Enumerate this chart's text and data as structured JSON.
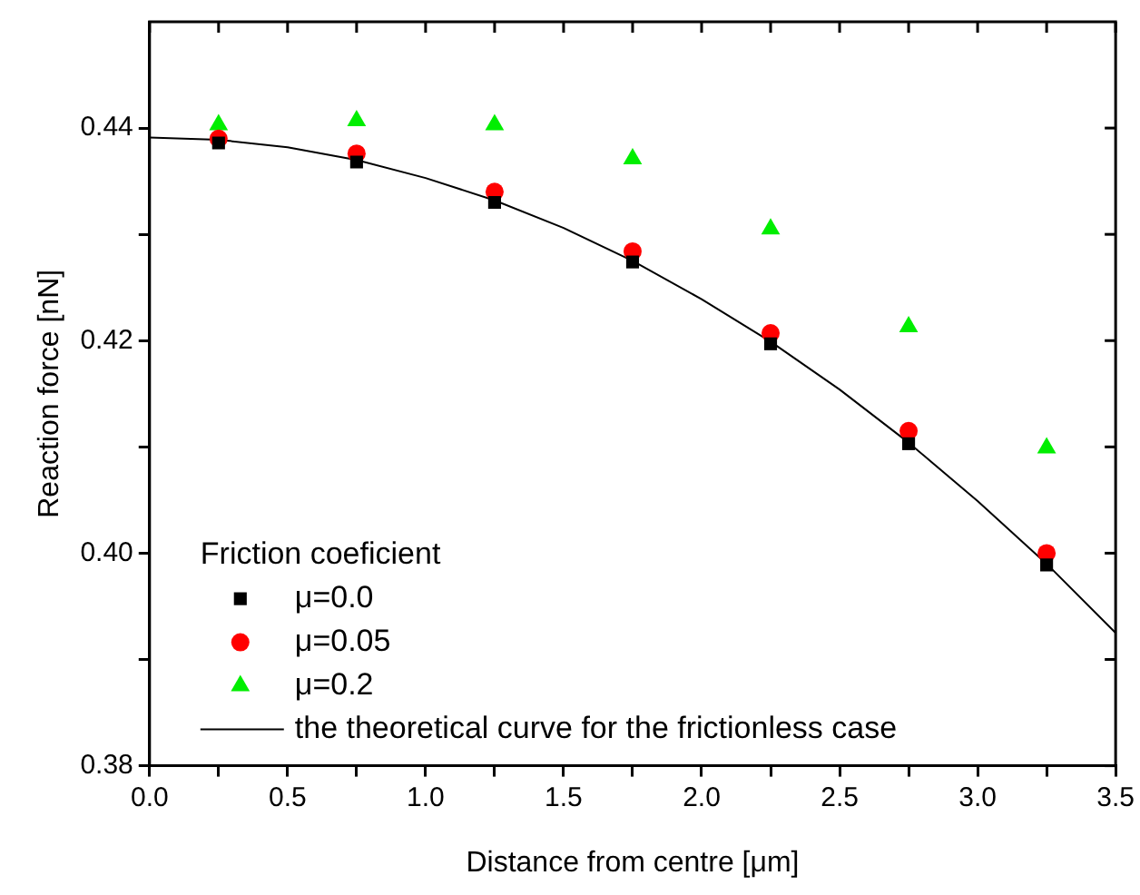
{
  "chart_data": {
    "type": "scatter",
    "xlabel": "Distance from centre [μm]",
    "ylabel": "Reaction force [nN]",
    "legend_title": "Friction coeficient",
    "legend": "bottom left",
    "grid": false,
    "xlim": [
      0,
      3.5
    ],
    "ylim": [
      0.38,
      0.45
    ],
    "xticks": [
      {
        "value": 0,
        "label": "0.0"
      },
      {
        "value": 0.25,
        "label": null
      },
      0.5,
      {
        "value": 0.75,
        "label": null
      },
      {
        "value": 1,
        "label": "1.0"
      },
      {
        "value": 1.25,
        "label": null
      },
      1.5,
      {
        "value": 1.75,
        "label": null
      },
      {
        "value": 2,
        "label": "2.0"
      },
      {
        "value": 2.25,
        "label": null
      },
      2.5,
      {
        "value": 2.75,
        "label": null
      },
      {
        "value": 3,
        "label": "3.0"
      },
      {
        "value": 3.25,
        "label": null
      },
      3.5
    ],
    "yticks": [
      0.38,
      {
        "value": 0.39,
        "label": null
      },
      {
        "value": 0.4,
        "label": "0.40"
      },
      {
        "value": 0.41,
        "label": null
      },
      0.42,
      {
        "value": 0.43,
        "label": null
      },
      0.44
    ],
    "x": [
      0.25,
      0.75,
      1.25,
      1.75,
      2.25,
      2.75,
      3.25
    ],
    "series": [
      {
        "name": "μ=0.0",
        "color": "#000000",
        "marker": "square",
        "values": [
          0.4386,
          0.4368,
          0.433,
          0.4274,
          0.4197,
          0.4103,
          0.3989
        ]
      },
      {
        "name": "μ=0.05",
        "color": "#ff0000",
        "marker": "circle",
        "values": [
          0.439,
          0.4376,
          0.434,
          0.4284,
          0.4207,
          0.4115,
          0.4
        ]
      },
      {
        "name": "μ=0.2",
        "color": "#00ee00",
        "marker": "triangle",
        "values": [
          0.4403,
          0.4407,
          0.4403,
          0.4371,
          0.4305,
          0.4213,
          0.4099
        ]
      },
      {
        "name": "the theoretical curve for the frictionless case",
        "type": "line",
        "color": "#000000",
        "marker": "none",
        "line_style": "solid",
        "x": [
          0,
          0.25,
          0.5,
          0.75,
          1.0,
          1.25,
          1.5,
          1.75,
          2.0,
          2.25,
          2.5,
          2.75,
          3.0,
          3.25,
          3.5
        ],
        "values": [
          0.4391,
          0.4389,
          0.4382,
          0.437,
          0.4353,
          0.4332,
          0.4306,
          0.4275,
          0.4239,
          0.4199,
          0.4154,
          0.4104,
          0.4049,
          0.399,
          0.3925
        ]
      }
    ]
  }
}
